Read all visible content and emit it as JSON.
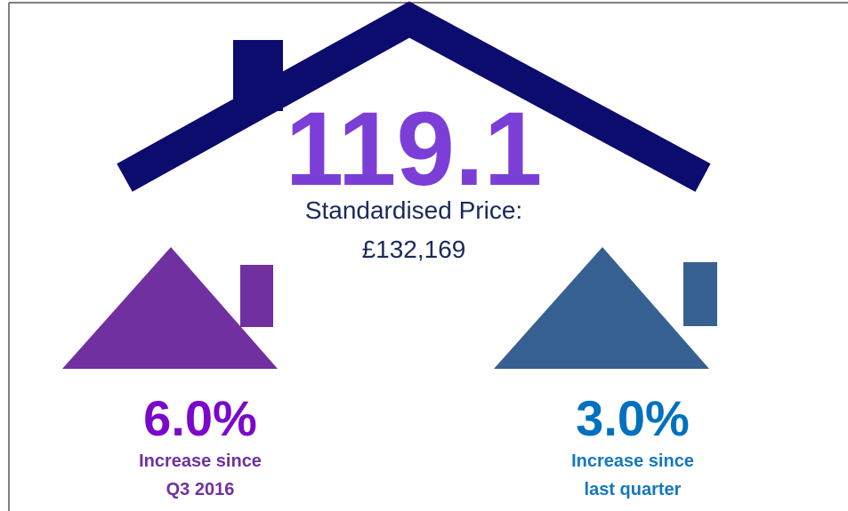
{
  "headline": {
    "index": "119.1",
    "price_label": "Standardised Price:",
    "price": "£132,169"
  },
  "stats": [
    {
      "value": "6.0%",
      "label_line1": "Increase since",
      "label_line2": "Q3 2016"
    },
    {
      "value": "3.0%",
      "label_line1": "Increase since",
      "label_line2": "last quarter"
    }
  ]
}
